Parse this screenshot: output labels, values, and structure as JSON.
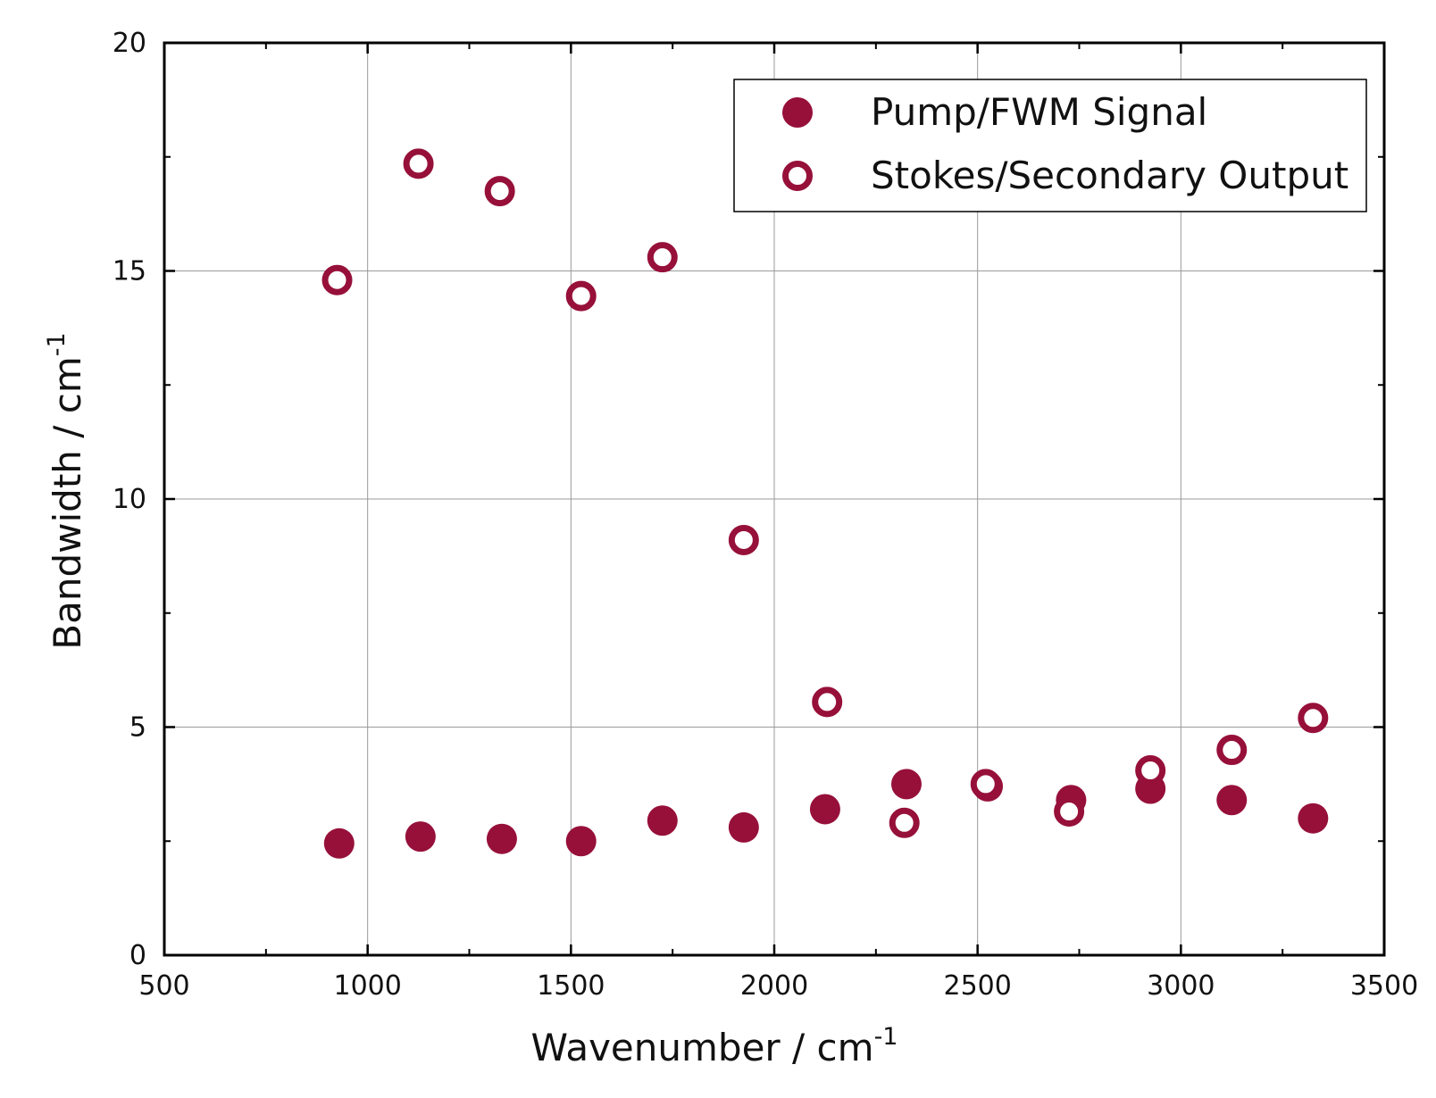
{
  "chart_data": {
    "type": "scatter",
    "xlabel": "Wavenumber / cm",
    "xlabel_sup": "-1",
    "ylabel": "Bandwidth / cm",
    "ylabel_sup": "-1",
    "xlim": [
      500,
      3500
    ],
    "ylim": [
      0,
      20
    ],
    "x_ticks": [
      "500",
      "1000",
      "1500",
      "2000",
      "2500",
      "3000",
      "3500"
    ],
    "y_ticks": [
      "0",
      "5",
      "10",
      "15",
      "20"
    ],
    "grid": true,
    "legend_position": "top-right",
    "color": "#96103a",
    "series": [
      {
        "name": "Pump/FWM Signal",
        "marker": "filled-circle",
        "points": [
          {
            "x": 930,
            "y": 2.45
          },
          {
            "x": 1130,
            "y": 2.6
          },
          {
            "x": 1330,
            "y": 2.55
          },
          {
            "x": 1525,
            "y": 2.5
          },
          {
            "x": 1725,
            "y": 2.95
          },
          {
            "x": 1925,
            "y": 2.8
          },
          {
            "x": 2125,
            "y": 3.2
          },
          {
            "x": 2325,
            "y": 3.75
          },
          {
            "x": 2525,
            "y": 3.7
          },
          {
            "x": 2730,
            "y": 3.4
          },
          {
            "x": 2925,
            "y": 3.65
          },
          {
            "x": 3125,
            "y": 3.4
          },
          {
            "x": 3325,
            "y": 3.0
          }
        ]
      },
      {
        "name": "Stokes/Secondary Output",
        "marker": "open-circle",
        "points": [
          {
            "x": 925,
            "y": 14.8
          },
          {
            "x": 1125,
            "y": 17.35
          },
          {
            "x": 1325,
            "y": 16.75
          },
          {
            "x": 1525,
            "y": 14.45
          },
          {
            "x": 1725,
            "y": 15.3
          },
          {
            "x": 1925,
            "y": 9.1
          },
          {
            "x": 2130,
            "y": 5.55
          },
          {
            "x": 2320,
            "y": 2.9
          },
          {
            "x": 2520,
            "y": 3.75
          },
          {
            "x": 2725,
            "y": 3.15
          },
          {
            "x": 2925,
            "y": 4.05
          },
          {
            "x": 3125,
            "y": 4.5
          },
          {
            "x": 3325,
            "y": 5.2
          }
        ]
      }
    ]
  }
}
